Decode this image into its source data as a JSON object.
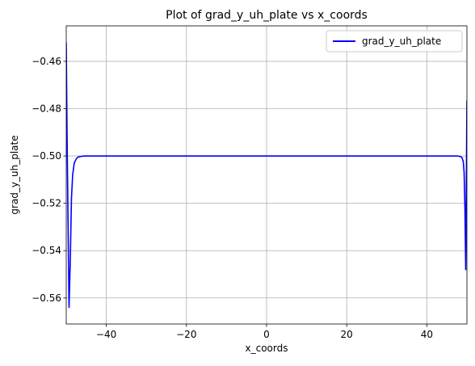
{
  "chart_data": {
    "type": "line",
    "title": "Plot of grad_y_uh_plate vs x_coords",
    "xlabel": "x_coords",
    "ylabel": "grad_y_uh_plate",
    "xlim": [
      -50,
      50
    ],
    "ylim": [
      -0.571,
      -0.445
    ],
    "x_ticks": [
      -40,
      -20,
      0,
      20,
      40
    ],
    "x_tick_labels": [
      "−40",
      "−20",
      "0",
      "20",
      "40"
    ],
    "y_ticks": [
      -0.56,
      -0.54,
      -0.52,
      -0.5,
      -0.48,
      -0.46
    ],
    "y_tick_labels": [
      "−0.56",
      "−0.54",
      "−0.52",
      "−0.50",
      "−0.48",
      "−0.46"
    ],
    "grid": true,
    "legend_position": "top-right",
    "series": [
      {
        "name": "grad_y_uh_plate",
        "color": "#0000ff",
        "x": [
          -50,
          -49.8,
          -49.5,
          -49.3,
          -49.0,
          -48.7,
          -48.4,
          -48.0,
          -47.5,
          -47.0,
          -46.0,
          -45.0,
          -40,
          -30,
          -20,
          -10,
          0,
          10,
          20,
          30,
          40,
          45,
          46.5,
          47.5,
          48.0,
          48.5,
          48.8,
          49.1,
          49.3,
          49.5,
          49.7,
          50
        ],
        "y": [
          -0.452,
          -0.49,
          -0.535,
          -0.564,
          -0.545,
          -0.518,
          -0.508,
          -0.503,
          -0.5012,
          -0.5004,
          -0.5001,
          -0.5,
          -0.5,
          -0.5,
          -0.5,
          -0.5,
          -0.5,
          -0.5,
          -0.5,
          -0.5,
          -0.5,
          -0.5,
          -0.5,
          -0.5,
          -0.5001,
          -0.5003,
          -0.5008,
          -0.5025,
          -0.507,
          -0.522,
          -0.548,
          -0.4765
        ]
      }
    ]
  }
}
